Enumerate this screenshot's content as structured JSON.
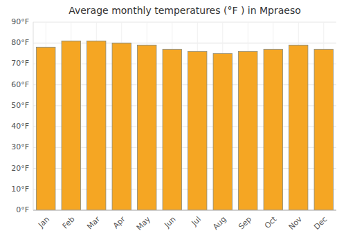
{
  "chart_data": {
    "type": "bar",
    "title": "Average monthly temperatures (°F ) in Mpraeso",
    "categories": [
      "Jan",
      "Feb",
      "Mar",
      "Apr",
      "May",
      "Jun",
      "Jul",
      "Aug",
      "Sep",
      "Oct",
      "Nov",
      "Dec"
    ],
    "values": [
      78,
      81,
      81,
      80,
      79,
      77,
      76,
      75,
      76,
      77,
      79,
      77
    ],
    "color": "#F5A623",
    "ylim": [
      0,
      90
    ],
    "yticks": [
      {
        "value": 0,
        "label": "0°F"
      },
      {
        "value": 10,
        "label": "10°F"
      },
      {
        "value": 20,
        "label": "20°F"
      },
      {
        "value": 30,
        "label": "30°F"
      },
      {
        "value": 40,
        "label": "40°F"
      },
      {
        "value": 50,
        "label": "50°F"
      },
      {
        "value": 60,
        "label": "60°F"
      },
      {
        "value": 70,
        "label": "70°F"
      },
      {
        "value": 80,
        "label": "80°F"
      },
      {
        "value": 90,
        "label": "90°F"
      }
    ],
    "grid": true
  }
}
